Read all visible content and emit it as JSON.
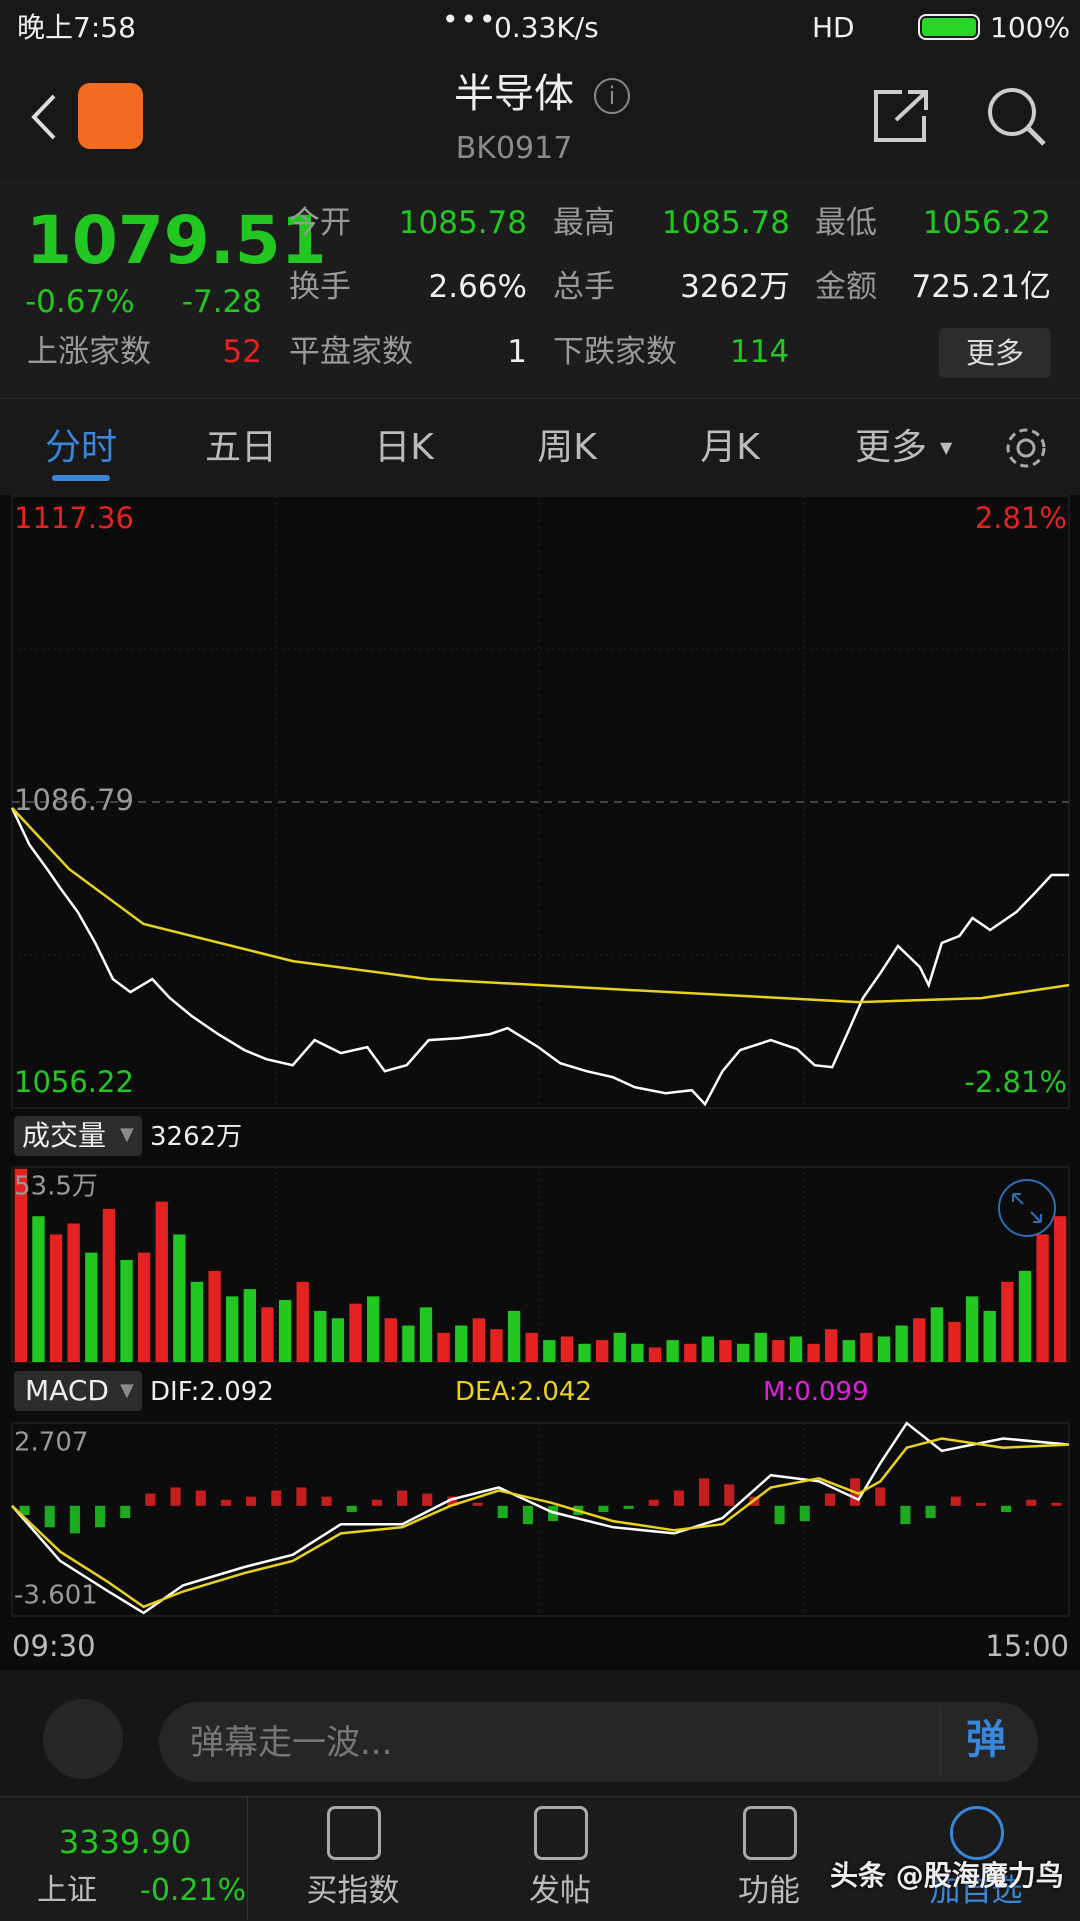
{
  "status_bar": {
    "time": "晚上7:58",
    "speed": "0.33K/s",
    "network": "HD",
    "battery": "100%"
  },
  "header": {
    "title": "半导体",
    "code": "BK0917"
  },
  "quote": {
    "price": "1079.51",
    "change_pct": "-0.67%",
    "change": "-7.28",
    "stats": [
      {
        "label": "今开",
        "value": "1085.78"
      },
      {
        "label": "最高",
        "value": "1085.78"
      },
      {
        "label": "最低",
        "value": "1056.22"
      },
      {
        "label": "换手",
        "value": "2.66%"
      },
      {
        "label": "总手",
        "value": "3262万"
      },
      {
        "label": "金额",
        "value": "725.21亿"
      }
    ],
    "breadth": [
      {
        "label": "上涨家数",
        "value": "52"
      },
      {
        "label": "平盘家数",
        "value": "1"
      },
      {
        "label": "下跌家数",
        "value": "114"
      }
    ],
    "more": "更多"
  },
  "tabs": [
    "分时",
    "五日",
    "日K",
    "周K",
    "月K",
    "更多"
  ],
  "price_chart": {
    "type": "line",
    "xlim": [
      0,
      241
    ],
    "ylim": [
      1056.22,
      1117.36
    ],
    "yticks": [
      1056.22,
      1117.36
    ],
    "base": 1086.79,
    "y2lim": [
      -2.81,
      2.81
    ],
    "y2ticks": [
      {
        "value": -2.81,
        "label": "-2.81%"
      },
      {
        "value": 2.81,
        "label": "2.81%"
      }
    ],
    "series": [
      {
        "name": "price",
        "color": "#ffffff",
        "x": [
          0,
          4,
          8,
          11,
          15,
          19,
          23,
          27,
          32,
          36,
          41,
          47,
          53,
          58,
          64,
          69,
          75,
          81,
          85,
          90,
          95,
          102,
          109,
          113,
          120,
          125,
          131,
          137,
          142,
          149,
          155,
          158,
          162,
          166,
          173,
          179,
          183,
          187,
          191,
          194,
          198,
          202,
          207,
          209,
          212,
          216,
          219,
          223,
          229,
          233,
          237,
          241
        ],
        "values": [
          1086.2,
          1082.5,
          1080.1,
          1078.2,
          1075.8,
          1072.7,
          1069.1,
          1067.8,
          1069.1,
          1067.2,
          1065.4,
          1063.6,
          1062.0,
          1061.1,
          1060.5,
          1063.0,
          1061.7,
          1062.3,
          1059.9,
          1060.5,
          1063.0,
          1063.2,
          1063.6,
          1064.2,
          1062.3,
          1060.7,
          1059.9,
          1059.3,
          1058.3,
          1057.7,
          1058.0,
          1056.6,
          1059.9,
          1062.0,
          1063.0,
          1062.1,
          1060.5,
          1060.3,
          1064.2,
          1067.2,
          1069.7,
          1072.4,
          1070.3,
          1068.5,
          1072.7,
          1073.4,
          1075.2,
          1074.0,
          1075.8,
          1077.6,
          1079.5,
          1079.5
        ]
      },
      {
        "name": "average",
        "color": "#e8d21c",
        "x": [
          0,
          13,
          30,
          64,
          95,
          137,
          193,
          221,
          241
        ],
        "values": [
          1086.2,
          1080.1,
          1074.6,
          1070.9,
          1069.1,
          1068.1,
          1066.8,
          1067.2,
          1068.5
        ]
      }
    ]
  },
  "volume_chart": {
    "type": "bar",
    "label": "成交量",
    "total": "3262万",
    "ylim": [
      0,
      53.5
    ],
    "yticks": [
      {
        "value": 53.5,
        "label": "53.5万"
      }
    ],
    "up_color": "#e52222",
    "down_color": "#22c722",
    "values": [
      53,
      40,
      35,
      38,
      30,
      42,
      28,
      30,
      44,
      35,
      22,
      25,
      18,
      20,
      15,
      17,
      22,
      14,
      12,
      16,
      18,
      12,
      10,
      15,
      8,
      10,
      12,
      9,
      14,
      8,
      6,
      7,
      5,
      6,
      8,
      5,
      4,
      6,
      5,
      7,
      6,
      5,
      8,
      6,
      7,
      5,
      9,
      6,
      8,
      7,
      10,
      12,
      15,
      11,
      18,
      14,
      22,
      25,
      35,
      40
    ],
    "up": [
      1,
      0,
      1,
      1,
      0,
      1,
      0,
      1,
      1,
      0,
      0,
      1,
      0,
      0,
      1,
      0,
      1,
      0,
      0,
      1,
      0,
      1,
      0,
      0,
      1,
      0,
      1,
      1,
      0,
      1,
      0,
      1,
      0,
      1,
      0,
      0,
      1,
      0,
      1,
      0,
      1,
      0,
      0,
      1,
      0,
      1,
      1,
      0,
      1,
      0,
      0,
      1,
      0,
      1,
      0,
      0,
      1,
      0,
      1,
      1
    ]
  },
  "macd_chart": {
    "type": "line",
    "label": "MACD",
    "dif": "DIF:2.092",
    "dea": "DEA:2.042",
    "m": "M:0.099",
    "xlim": [
      0,
      241
    ],
    "ylim": [
      -3.601,
      2.707
    ],
    "yticks": [
      -3.601,
      2.707
    ],
    "xticks": [
      {
        "value": 0,
        "label": "09:30"
      },
      {
        "value": 241,
        "label": "15:00"
      }
    ],
    "series": [
      {
        "name": "DIF",
        "color": "#ffffff",
        "x": [
          0,
          11,
          22,
          30,
          39,
          53,
          64,
          75,
          89,
          100,
          111,
          123,
          137,
          151,
          162,
          173,
          184,
          193,
          198,
          204,
          212,
          226,
          241
        ],
        "values": [
          0.0,
          -1.8,
          -2.8,
          -3.5,
          -2.6,
          -2.0,
          -1.6,
          -0.6,
          -0.6,
          0.2,
          0.6,
          -0.2,
          -0.7,
          -0.9,
          -0.4,
          1.0,
          0.8,
          0.2,
          1.4,
          2.7,
          1.8,
          2.2,
          2.0
        ]
      },
      {
        "name": "DEA",
        "color": "#e8d21c",
        "x": [
          0,
          11,
          22,
          30,
          39,
          53,
          64,
          75,
          89,
          100,
          111,
          123,
          137,
          151,
          162,
          173,
          184,
          193,
          198,
          204,
          212,
          226,
          241
        ],
        "values": [
          0.0,
          -1.5,
          -2.5,
          -3.3,
          -2.8,
          -2.2,
          -1.8,
          -0.9,
          -0.7,
          0.0,
          0.5,
          0.1,
          -0.5,
          -0.8,
          -0.6,
          0.6,
          0.9,
          0.4,
          0.8,
          1.9,
          2.2,
          1.9,
          2.0
        ]
      }
    ],
    "histogram": {
      "up_color": "#e52222",
      "down_color": "#22c722",
      "values": [
        -0.3,
        -0.7,
        -0.9,
        -0.7,
        -0.4,
        0.4,
        0.6,
        0.5,
        0.2,
        0.3,
        0.5,
        0.6,
        0.3,
        -0.2,
        0.2,
        0.5,
        0.4,
        0.3,
        0.1,
        -0.4,
        -0.6,
        -0.5,
        -0.3,
        -0.2,
        -0.1,
        0.2,
        0.5,
        0.9,
        0.7,
        0.3,
        -0.6,
        -0.5,
        0.4,
        0.9,
        0.6,
        -0.6,
        -0.4,
        0.3,
        0.1,
        -0.2,
        0.2,
        0.1
      ]
    }
  },
  "comment_bar": {
    "placeholder": "弹幕走一波...",
    "button": "弹"
  },
  "bottom_nav": {
    "index_value": "3339.90",
    "index_name": "上证",
    "index_change": "-0.21%",
    "items": [
      "买指数",
      "发帖",
      "功能",
      "加自选"
    ]
  },
  "watermark": "头条 @股海魔力鸟"
}
